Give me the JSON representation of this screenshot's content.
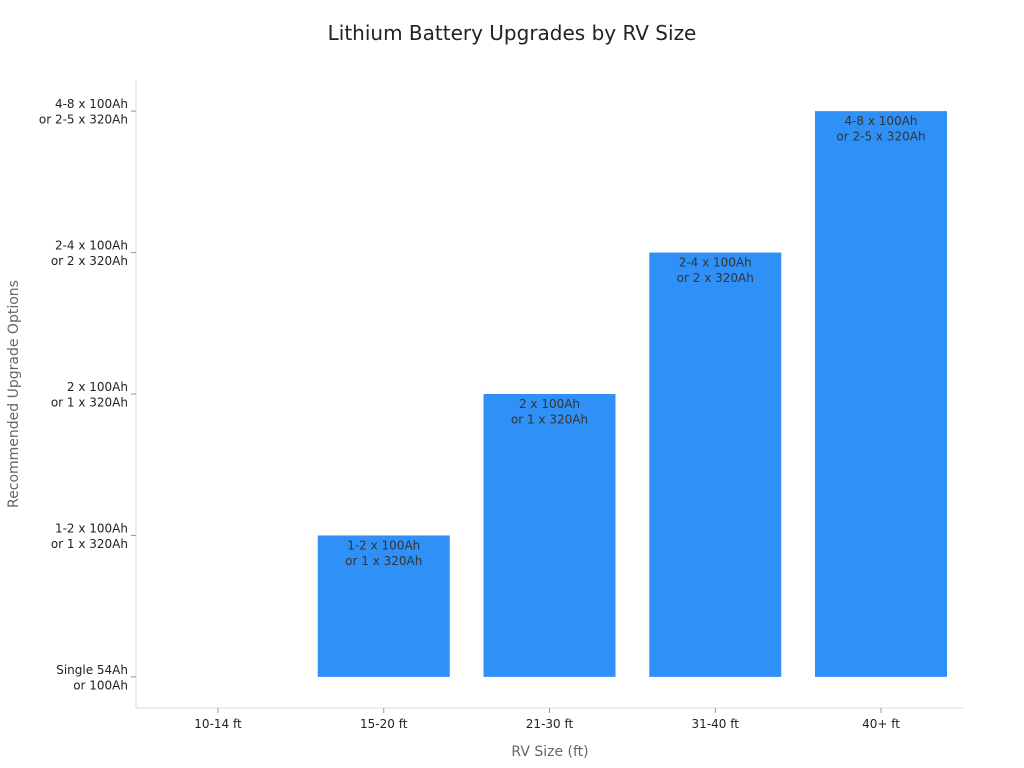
{
  "chart_data": {
    "type": "bar",
    "title": "Lithium Battery Upgrades by RV Size",
    "xlabel": "RV Size (ft)",
    "ylabel": "Recommended Upgrade Options",
    "categories": [
      "10-14 ft",
      "15-20 ft",
      "21-30 ft",
      "31-40 ft",
      "40+ ft"
    ],
    "values": [
      0,
      1,
      2,
      3,
      4
    ],
    "y_ticks": [
      [
        "Single 54Ah",
        "or 100Ah"
      ],
      [
        "1-2 x 100Ah",
        "or 1 x 320Ah"
      ],
      [
        "2 x 100Ah",
        "or 1 x 320Ah"
      ],
      [
        "2-4 x 100Ah",
        "or 2 x 320Ah"
      ],
      [
        "4-8 x 100Ah",
        "or 2-5 x 320Ah"
      ]
    ],
    "bar_labels": [
      [],
      [
        "1-2 x 100Ah",
        "or 1 x 320Ah"
      ],
      [
        "2 x 100Ah",
        "or 1 x 320Ah"
      ],
      [
        "2-4 x 100Ah",
        "or 2 x 320Ah"
      ],
      [
        "4-8 x 100Ah",
        "or 2-5 x 320Ah"
      ]
    ],
    "ylim": [
      -0.22,
      4.22
    ],
    "grid": false,
    "legend": "none",
    "bar_color": "#2f91f7",
    "axis_color": "#dddddd"
  }
}
